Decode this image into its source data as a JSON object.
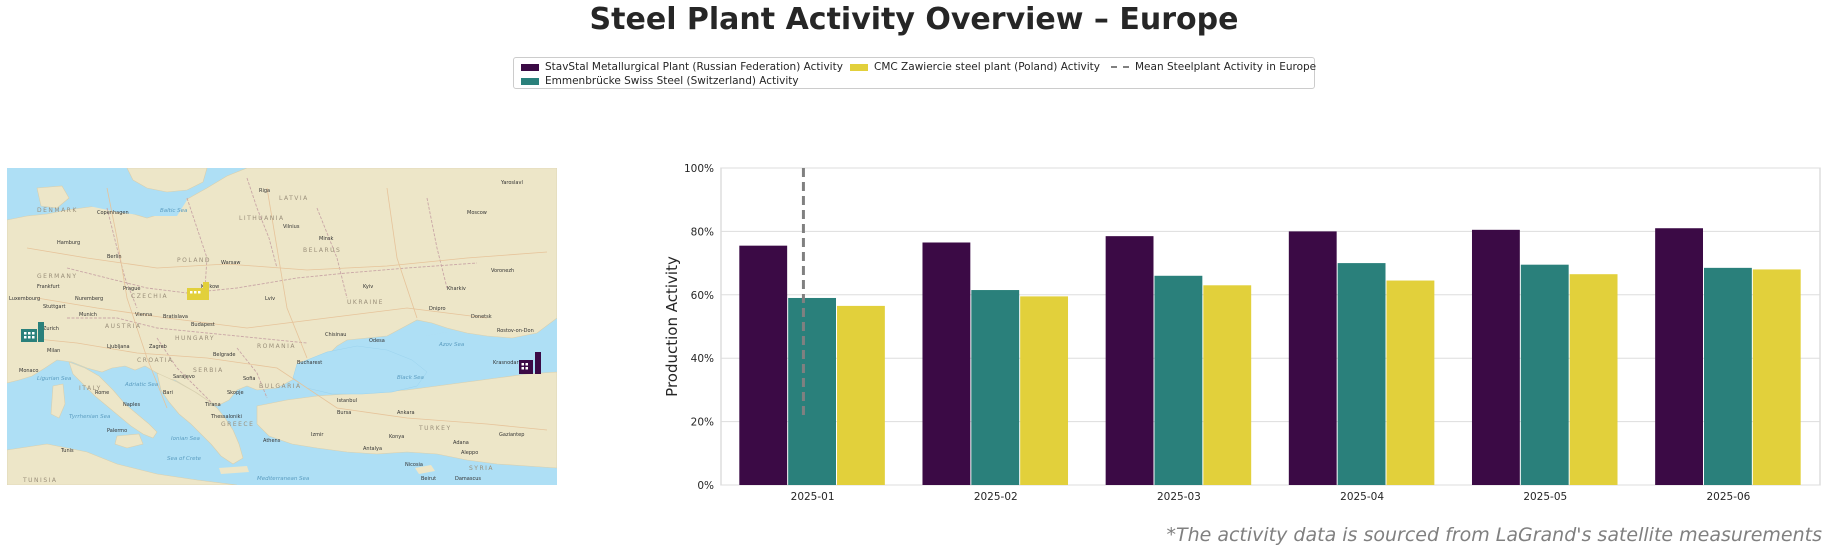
{
  "title": "Steel Plant Activity Overview – Europe",
  "footnote": "*The activity data is sourced from LaGrand's satellite measurements",
  "legend": [
    {
      "label": "StavStal Metallurgical Plant (Russian Federation) Activity",
      "color": "#3b0a45",
      "kind": "bar"
    },
    {
      "label": "Emmenbrücke Swiss Steel (Switzerland) Activity",
      "color": "#2a807b",
      "kind": "bar"
    },
    {
      "label": "CMC Zawiercie steel plant (Poland) Activity",
      "color": "#e2d03b",
      "kind": "bar"
    },
    {
      "label": "Mean Steelplant Activity in Europe",
      "color": "#808080",
      "kind": "dashed-line"
    }
  ],
  "map": {
    "colors": {
      "sea": "#aedff5",
      "land": "#ede6c8",
      "border": "#c9a6a6",
      "road": "#e6c39a"
    },
    "markers": [
      {
        "name": "CMC Zawiercie steel plant (Poland)",
        "color": "#e2d03b",
        "icon": "factory-icon"
      },
      {
        "name": "Emmenbrücke Swiss Steel (Switzerland)",
        "color": "#2a807b",
        "icon": "factory-icon"
      },
      {
        "name": "StavStal Metallurgical Plant (Russian Federation)",
        "color": "#3b0a45",
        "icon": "factory-icon"
      }
    ],
    "labels": {
      "seas": [
        "Baltic Sea",
        "Black Sea",
        "Azov Sea",
        "Tyrrhenian Sea",
        "Adriatic Sea",
        "Ionian Sea",
        "Mediterranean Sea",
        "Ligurian Sea",
        "Sea of Crete"
      ],
      "countries": [
        "DENMARK",
        "LITHUANIA",
        "LATVIA",
        "POLAND",
        "BELARUS",
        "GERMANY",
        "CZECHIA",
        "UKRAINE",
        "AUSTRIA",
        "HUNGARY",
        "ROMANIA",
        "ITALY",
        "BULGARIA",
        "GREECE",
        "TURKEY",
        "SYRIA",
        "TUNISIA",
        "CROATIA",
        "SERBIA"
      ],
      "cities": [
        "Riga",
        "Yaroslavl",
        "Copenhagen",
        "Moscow",
        "Vilnius",
        "Minsk",
        "Hamburg",
        "Berlin",
        "Warsaw",
        "Kyiv",
        "Prague",
        "Krakow",
        "Voronezh",
        "Frankfurt",
        "Nuremberg",
        "Lviv",
        "Kharkiv",
        "Stuttgart",
        "Dnipro",
        "Donetsk",
        "Munich",
        "Vienna",
        "Bratislava",
        "Budapest",
        "Rostov-on-Don",
        "Zurich",
        "Chisinau",
        "Odesa",
        "Milan",
        "Ljubljana",
        "Zagreb",
        "Belgrade",
        "Bucharest",
        "Monaco",
        "Sarajevo",
        "Sofia",
        "Krasnodar",
        "Rome",
        "Naples",
        "Bari",
        "Skopje",
        "Tirana",
        "Istanbul",
        "Bursa",
        "Ankara",
        "Izmir",
        "Konya",
        "Athens",
        "Palermo",
        "Antalya",
        "Adana",
        "Gaziantep",
        "Aleppo",
        "Tunis",
        "Nicosia",
        "Beirut",
        "Damascus",
        "Luxembourg",
        "Thessaloniki"
      ]
    }
  },
  "chart_data": {
    "type": "bar",
    "categories": [
      "2025-01",
      "2025-02",
      "2025-03",
      "2025-04",
      "2025-05",
      "2025-06"
    ],
    "series": [
      {
        "name": "StavStal Metallurgical Plant (Russian Federation) Activity",
        "color": "#3b0a45",
        "values": [
          75.5,
          76.5,
          78.5,
          80,
          80.5,
          81
        ]
      },
      {
        "name": "Emmenbrücke Swiss Steel (Switzerland) Activity",
        "color": "#2a807b",
        "values": [
          59,
          61.5,
          66,
          70,
          69.5,
          68.5
        ]
      },
      {
        "name": "CMC Zawiercie steel plant (Poland) Activity",
        "color": "#e2d03b",
        "values": [
          56.5,
          59.5,
          63,
          64.5,
          66.5,
          68
        ]
      }
    ],
    "mean_line": {
      "name": "Mean Steelplant Activity in Europe",
      "x": "2025-01",
      "x_offset_fraction": -0.05,
      "y_range": [
        21,
        100
      ],
      "style": "dashed",
      "color": "#808080"
    },
    "ylabel": "Production Activity",
    "xlabel": "",
    "yticks": [
      "0%",
      "20%",
      "40%",
      "60%",
      "80%",
      "100%"
    ],
    "ylim": [
      0,
      100
    ],
    "grid": "horizontal",
    "legend_position": "top-center"
  }
}
